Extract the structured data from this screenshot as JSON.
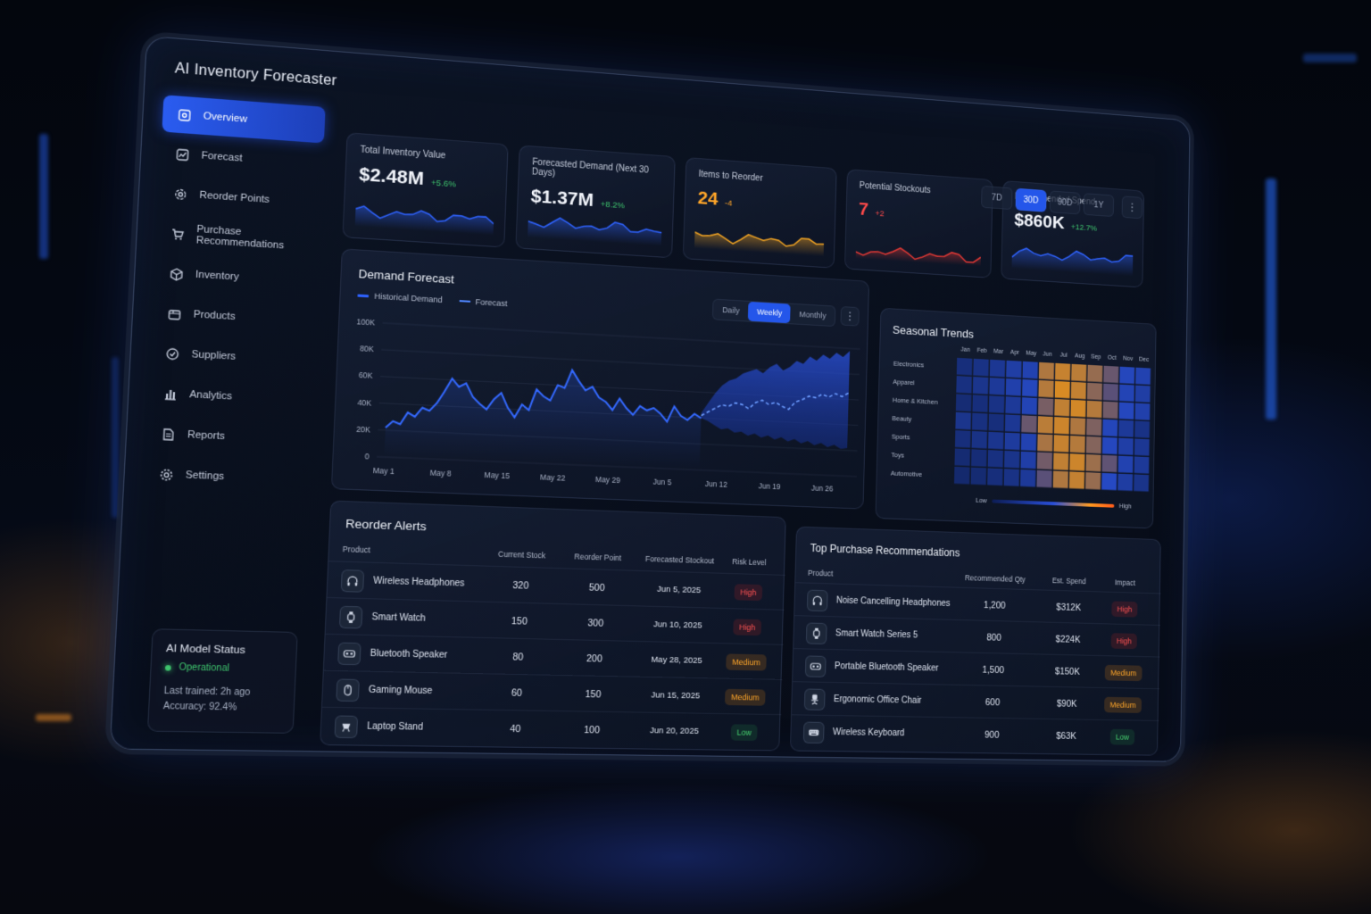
{
  "app": {
    "title": "AI Inventory Forecaster"
  },
  "sidebar": {
    "items": [
      {
        "label": "Overview",
        "icon": "overview-icon",
        "active": true
      },
      {
        "label": "Forecast",
        "icon": "chart-line-icon"
      },
      {
        "label": "Reorder Points",
        "icon": "gear-refresh-icon"
      },
      {
        "label": "Purchase Recommendations",
        "icon": "cart-gear-icon"
      },
      {
        "label": "Inventory",
        "icon": "box-icon"
      },
      {
        "label": "Products",
        "icon": "package-icon"
      },
      {
        "label": "Suppliers",
        "icon": "supplier-icon"
      },
      {
        "label": "Analytics",
        "icon": "bar-chart-icon"
      },
      {
        "label": "Reports",
        "icon": "document-icon"
      },
      {
        "label": "Settings",
        "icon": "gear-icon"
      }
    ],
    "model_status": {
      "title": "AI Model Status",
      "status": "Operational",
      "last_trained": "Last trained: 2h ago",
      "accuracy": "Accuracy: 92.4%"
    }
  },
  "range": {
    "options": [
      "7D",
      "30D",
      "90D",
      "1Y"
    ],
    "selected": "30D"
  },
  "kpis": [
    {
      "label": "Total Inventory Value",
      "value": "$2.48M",
      "change": "+5.6%",
      "value_color": "#f2f5fb",
      "change_color": "#3ec46d",
      "spark_color": "#2f63ff"
    },
    {
      "label": "Forecasted Demand (Next 30 Days)",
      "value": "$1.37M",
      "change": "+8.2%",
      "value_color": "#f2f5fb",
      "change_color": "#3ec46d",
      "spark_color": "#2f63ff"
    },
    {
      "label": "Items to Reorder",
      "value": "24",
      "change": "-4",
      "value_color": "#ffa629",
      "change_color": "#ffa629",
      "spark_color": "#f5a623"
    },
    {
      "label": "Potential Stockouts",
      "value": "7",
      "change": "+2",
      "value_color": "#ff4a4a",
      "change_color": "#ff4a4a",
      "spark_color": "#e53935"
    },
    {
      "label": "Recommended Spend",
      "value": "$860K",
      "change": "+12.7%",
      "value_color": "#f2f5fb",
      "change_color": "#3ec46d",
      "spark_color": "#2f63ff"
    }
  ],
  "demand_forecast": {
    "title": "Demand Forecast",
    "legend": {
      "historical": "Historical Demand",
      "forecast": "Forecast"
    },
    "granularity": {
      "options": [
        "Daily",
        "Weekly",
        "Monthly"
      ],
      "selected": "Weekly"
    },
    "chart_data": {
      "type": "line",
      "y_ticks": [
        "100K",
        "80K",
        "60K",
        "40K",
        "20K",
        "0"
      ],
      "ylim": [
        0,
        100000
      ],
      "x_ticks": [
        "May 1",
        "May 8",
        "May 15",
        "May 22",
        "May 29",
        "Jun 5",
        "Jun 12",
        "Jun 19",
        "Jun 26"
      ],
      "historical": [
        22000,
        27000,
        25000,
        34000,
        31000,
        38000,
        36000,
        42000,
        51000,
        61000,
        55000,
        58000,
        48000,
        43000,
        39000,
        47000,
        52000,
        41000,
        34000,
        44000,
        40000,
        56000,
        51000,
        48000,
        60000,
        58000,
        72000,
        64000,
        57000,
        60000,
        52000,
        49000,
        43000,
        52000,
        45000,
        40000,
        47000,
        44000,
        46000,
        42000,
        36000,
        48000,
        41000,
        38000,
        43000,
        40000
      ],
      "forecast": [
        42000,
        45000,
        48000,
        51000,
        50000,
        53000,
        52000,
        49000,
        54000,
        56000,
        53000,
        55000,
        52000,
        50000,
        56000,
        58000,
        61000,
        60000,
        63000,
        61000,
        64000,
        62000,
        65000
      ],
      "forecast_upper": [
        44000,
        52000,
        60000,
        66000,
        70000,
        72000,
        76000,
        78000,
        80000,
        77000,
        82000,
        85000,
        80000,
        83000,
        88000,
        86000,
        92000,
        89000,
        94000,
        91000,
        96000,
        93000,
        98000
      ],
      "forecast_lower": [
        40000,
        38000,
        35000,
        32000,
        33000,
        30000,
        31000,
        28000,
        30000,
        27000,
        29000,
        26000,
        28000,
        25000,
        27000,
        24000,
        26000,
        23000,
        25000,
        22000,
        24000,
        21000,
        22000
      ]
    }
  },
  "seasonal_trends": {
    "title": "Seasonal Trends",
    "chart_data": {
      "type": "heatmap",
      "months": [
        "Jan",
        "Feb",
        "Mar",
        "Apr",
        "May",
        "Jun",
        "Jul",
        "Aug",
        "Sep",
        "Oct",
        "Nov",
        "Dec"
      ],
      "categories": [
        "Electronics",
        "Apparel",
        "Home & Kitchen",
        "Beauty",
        "Sports",
        "Toys",
        "Automotive"
      ],
      "values": [
        [
          0.18,
          0.22,
          0.28,
          0.35,
          0.4,
          0.78,
          0.86,
          0.82,
          0.7,
          0.55,
          0.45,
          0.4
        ],
        [
          0.2,
          0.25,
          0.3,
          0.38,
          0.45,
          0.8,
          0.92,
          0.85,
          0.66,
          0.5,
          0.42,
          0.35
        ],
        [
          0.15,
          0.18,
          0.22,
          0.3,
          0.42,
          0.6,
          0.84,
          0.9,
          0.8,
          0.58,
          0.46,
          0.38
        ],
        [
          0.25,
          0.2,
          0.18,
          0.28,
          0.55,
          0.82,
          0.88,
          0.78,
          0.62,
          0.44,
          0.3,
          0.22
        ],
        [
          0.18,
          0.22,
          0.26,
          0.32,
          0.4,
          0.76,
          0.86,
          0.8,
          0.64,
          0.46,
          0.36,
          0.28
        ],
        [
          0.14,
          0.16,
          0.2,
          0.24,
          0.36,
          0.58,
          0.84,
          0.88,
          0.72,
          0.52,
          0.4,
          0.3
        ],
        [
          0.12,
          0.14,
          0.18,
          0.22,
          0.3,
          0.5,
          0.78,
          0.85,
          0.7,
          0.48,
          0.34,
          0.24
        ]
      ],
      "scale": {
        "low": "Low",
        "high": "High"
      }
    }
  },
  "reorder_alerts": {
    "title": "Reorder Alerts",
    "columns": [
      "Product",
      "Current Stock",
      "Reorder Point",
      "Forecasted Stockout",
      "Risk Level"
    ],
    "rows": [
      {
        "product": "Wireless Headphones",
        "icon": "headphones-icon",
        "stock": "320",
        "reorder": "500",
        "stockout": "Jun 5, 2025",
        "risk": "High"
      },
      {
        "product": "Smart Watch",
        "icon": "smartwatch-icon",
        "stock": "150",
        "reorder": "300",
        "stockout": "Jun 10, 2025",
        "risk": "High"
      },
      {
        "product": "Bluetooth Speaker",
        "icon": "speaker-icon",
        "stock": "80",
        "reorder": "200",
        "stockout": "May 28, 2025",
        "risk": "Medium"
      },
      {
        "product": "Gaming Mouse",
        "icon": "mouse-icon",
        "stock": "60",
        "reorder": "150",
        "stockout": "Jun 15, 2025",
        "risk": "Medium"
      },
      {
        "product": "Laptop Stand",
        "icon": "laptop-stand-icon",
        "stock": "40",
        "reorder": "100",
        "stockout": "Jun 20, 2025",
        "risk": "Low"
      }
    ]
  },
  "purchase_recs": {
    "title": "Top Purchase Recommendations",
    "columns": [
      "Product",
      "Recommended Qty",
      "Est. Spend",
      "Impact"
    ],
    "rows": [
      {
        "product": "Noise Cancelling Headphones",
        "icon": "headphones-icon",
        "qty": "1,200",
        "spend": "$312K",
        "impact": "High"
      },
      {
        "product": "Smart Watch Series 5",
        "icon": "smartwatch-icon",
        "qty": "800",
        "spend": "$224K",
        "impact": "High"
      },
      {
        "product": "Portable Bluetooth Speaker",
        "icon": "speaker-icon",
        "qty": "1,500",
        "spend": "$150K",
        "impact": "Medium"
      },
      {
        "product": "Ergonomic Office Chair",
        "icon": "chair-icon",
        "qty": "600",
        "spend": "$90K",
        "impact": "Medium"
      },
      {
        "product": "Wireless Keyboard",
        "icon": "keyboard-icon",
        "qty": "900",
        "spend": "$63K",
        "impact": "Low"
      }
    ]
  }
}
